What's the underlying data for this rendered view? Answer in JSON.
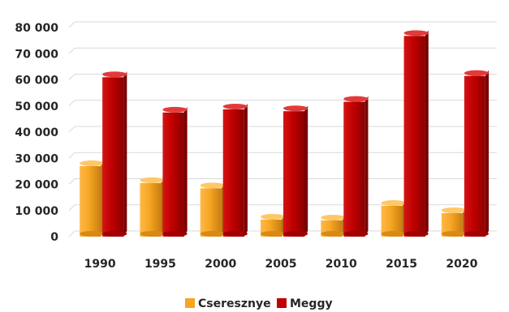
{
  "chart_data": {
    "type": "bar",
    "categories": [
      "1990",
      "1995",
      "2000",
      "2005",
      "2010",
      "2015",
      "2020"
    ],
    "series": [
      {
        "name": "Cseresznye",
        "values": [
          27000,
          20500,
          18500,
          6500,
          6200,
          11800,
          9000
        ],
        "color": "#F5A623"
      },
      {
        "name": "Meggy",
        "values": [
          61000,
          47500,
          48700,
          48000,
          51600,
          76800,
          61500
        ],
        "color": "#C00000"
      }
    ],
    "ylim": [
      0,
      80000
    ],
    "y_ticks": [
      "0",
      "10 000",
      "20 000",
      "30 000",
      "40 000",
      "50 000",
      "60 000",
      "70 000",
      "80 000"
    ],
    "grid": true,
    "legend_position": "bottom",
    "title": "",
    "xlabel": "",
    "ylabel": ""
  }
}
